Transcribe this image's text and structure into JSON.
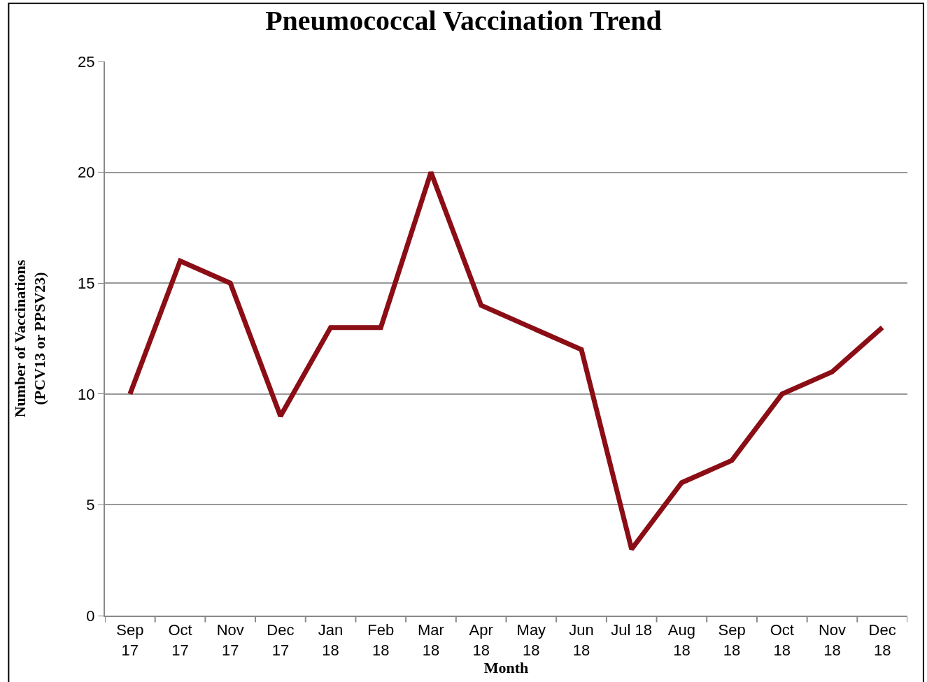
{
  "chart_data": {
    "type": "line",
    "title": "Pneumococcal Vaccination Trend",
    "xlabel": "Month",
    "ylabel": "Number of Vaccinations\n(PCV13 or PPSV23)",
    "categories": [
      "Sep\n17",
      "Oct\n17",
      "Nov\n17",
      "Dec\n17",
      "Jan\n18",
      "Feb\n18",
      "Mar\n18",
      "Apr\n18",
      "May\n18",
      "Jun\n18",
      "Jul 18",
      "Aug\n18",
      "Sep\n18",
      "Oct\n18",
      "Nov\n18",
      "Dec\n18"
    ],
    "series": [
      {
        "color": "#8b0d15",
        "values": [
          10,
          16,
          15,
          9,
          13,
          13,
          20,
          14,
          13,
          12,
          3,
          6,
          7,
          10,
          11,
          13
        ]
      }
    ],
    "ylim": [
      0,
      25
    ],
    "yticks": [
      0,
      5,
      10,
      15,
      20,
      25
    ],
    "grid": "y",
    "marker": "none",
    "line_style": "solid"
  }
}
